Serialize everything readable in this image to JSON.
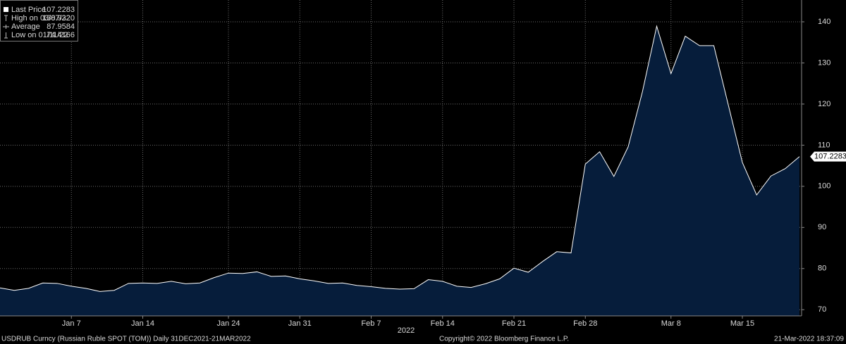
{
  "chart_data": {
    "type": "area",
    "categories": [
      null,
      null,
      null,
      null,
      null,
      "Jan 7",
      null,
      null,
      null,
      null,
      "Jan 14",
      null,
      null,
      null,
      null,
      null,
      "Jan 24",
      null,
      null,
      null,
      null,
      "Jan 31",
      null,
      null,
      null,
      null,
      "Feb 7",
      null,
      null,
      null,
      null,
      "Feb 14",
      null,
      null,
      null,
      null,
      "Feb 21",
      null,
      null,
      null,
      null,
      "Feb 28",
      null,
      null,
      null,
      null,
      null,
      "Mar 8",
      null,
      null,
      null,
      null,
      "Mar 15",
      null,
      null,
      null,
      null
    ],
    "xlabel": "2022",
    "series": [
      {
        "name": "Last Price",
        "color": "#ffffff",
        "fill": "#061d3b",
        "values": [
          75.3,
          74.7,
          75.2,
          76.5,
          76.4,
          75.7,
          75.2,
          74.4166,
          74.7,
          76.4,
          76.5,
          76.4,
          76.9,
          76.3,
          76.5,
          77.8,
          78.9,
          78.8,
          79.2,
          78.1,
          78.2,
          77.5,
          77.0,
          76.4,
          76.5,
          75.9,
          75.6,
          75.2,
          75.0,
          75.1,
          77.3,
          76.9,
          75.7,
          75.4,
          76.3,
          77.5,
          80.1,
          79.1,
          81.7,
          84.1,
          83.8,
          105.4,
          108.4,
          102.4,
          109.6,
          123,
          138.932,
          127.4,
          136.5,
          134.2,
          134.2,
          120,
          105.8,
          97.9,
          102.5,
          104.3,
          107.2283
        ]
      }
    ],
    "stats": [
      {
        "label": "Last Price",
        "value": "107.2283"
      },
      {
        "label": "High on 03/07/22",
        "value": "138.9320"
      },
      {
        "label": "Average",
        "value": "87.9584"
      },
      {
        "label": "Low on 01/11/22",
        "value": "74.4166"
      }
    ],
    "ylim": [
      68.5,
      145.3
    ],
    "yticks": [
      70,
      80,
      90,
      100,
      110,
      120,
      130,
      140
    ],
    "grid": true
  },
  "footer": {
    "left": "USDRUB Curncy (Russian Ruble SPOT (TOM))  Daily 31DEC2021-21MAR2022",
    "center": "Copyright© 2022 Bloomberg Finance L.P.",
    "right": "21-Mar-2022 18:37:09"
  }
}
